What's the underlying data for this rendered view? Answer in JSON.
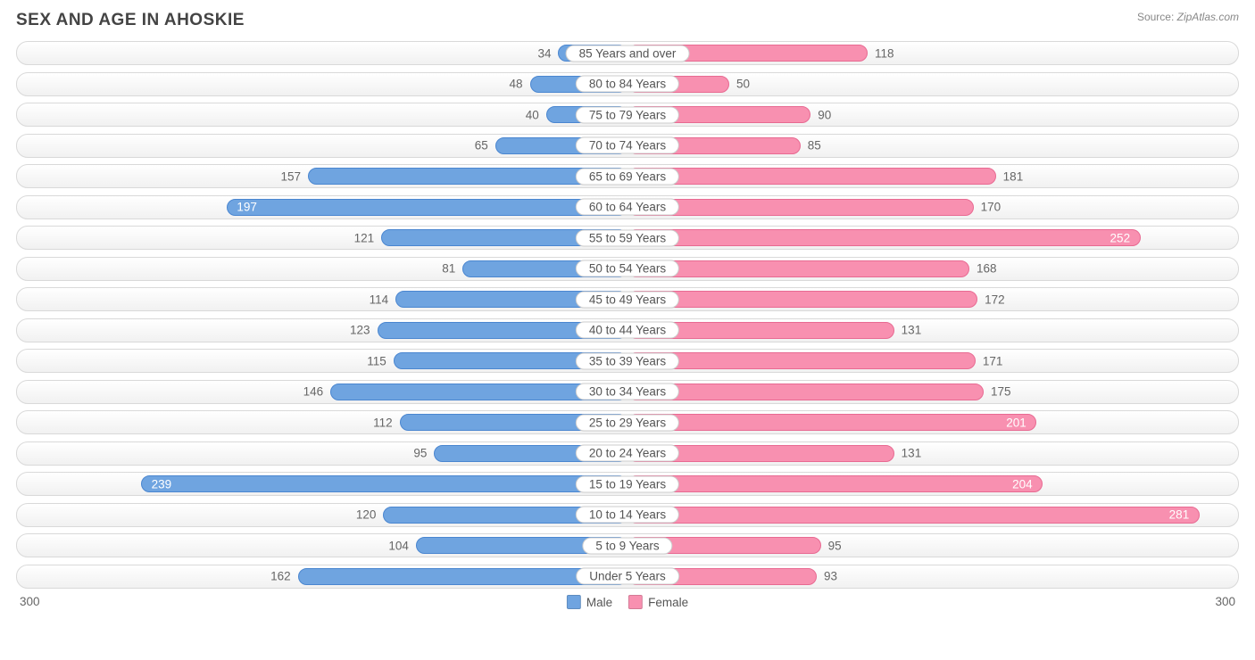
{
  "title": "SEX AND AGE IN AHOSKIE",
  "source": {
    "label": "Source: ",
    "site": "ZipAtlas.com"
  },
  "chart": {
    "type": "population-pyramid",
    "axis_max": 300,
    "axis_label": "300",
    "inside_label_threshold": 195,
    "colors": {
      "male_fill": "#6fa4e0",
      "male_border": "#4a86d0",
      "female_fill": "#f890b0",
      "female_border": "#e86a92",
      "row_border": "#d9d9d9",
      "row_bg_top": "#ffffff",
      "row_bg_bot": "#f1f1f1",
      "pill_bg": "#ffffff",
      "pill_border": "#cccccc",
      "text": "#666666",
      "title_text": "#444444",
      "source_text": "#888888",
      "value_inside": "#ffffff"
    },
    "legend": [
      {
        "label": "Male",
        "color": "#6fa4e0"
      },
      {
        "label": "Female",
        "color": "#f890b0"
      }
    ],
    "rows": [
      {
        "label": "85 Years and over",
        "male": 34,
        "female": 118
      },
      {
        "label": "80 to 84 Years",
        "male": 48,
        "female": 50
      },
      {
        "label": "75 to 79 Years",
        "male": 40,
        "female": 90
      },
      {
        "label": "70 to 74 Years",
        "male": 65,
        "female": 85
      },
      {
        "label": "65 to 69 Years",
        "male": 157,
        "female": 181
      },
      {
        "label": "60 to 64 Years",
        "male": 197,
        "female": 170
      },
      {
        "label": "55 to 59 Years",
        "male": 121,
        "female": 252
      },
      {
        "label": "50 to 54 Years",
        "male": 81,
        "female": 168
      },
      {
        "label": "45 to 49 Years",
        "male": 114,
        "female": 172
      },
      {
        "label": "40 to 44 Years",
        "male": 123,
        "female": 131
      },
      {
        "label": "35 to 39 Years",
        "male": 115,
        "female": 171
      },
      {
        "label": "30 to 34 Years",
        "male": 146,
        "female": 175
      },
      {
        "label": "25 to 29 Years",
        "male": 112,
        "female": 201
      },
      {
        "label": "20 to 24 Years",
        "male": 95,
        "female": 131
      },
      {
        "label": "15 to 19 Years",
        "male": 239,
        "female": 204
      },
      {
        "label": "10 to 14 Years",
        "male": 120,
        "female": 281
      },
      {
        "label": "5 to 9 Years",
        "male": 104,
        "female": 95
      },
      {
        "label": "Under 5 Years",
        "male": 162,
        "female": 93
      }
    ]
  }
}
